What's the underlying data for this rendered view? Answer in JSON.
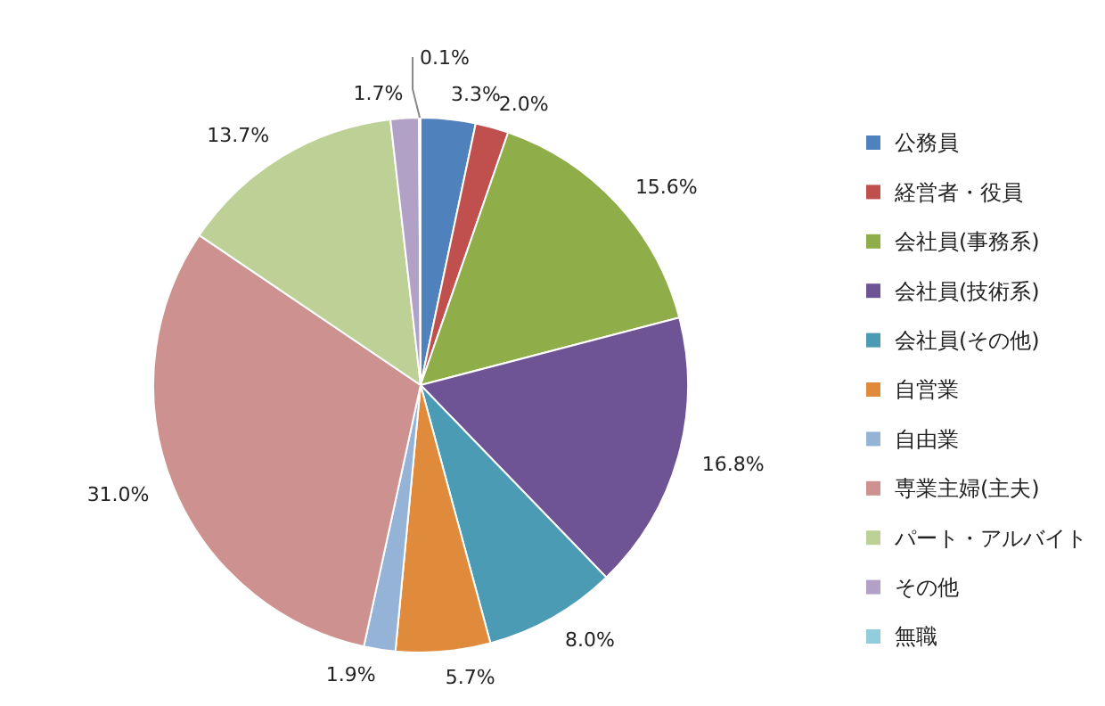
{
  "chart_data": {
    "type": "pie",
    "categories": [
      "公務員",
      "経営者・役員",
      "会社員(事務系)",
      "会社員(技術系)",
      "会社員(その他)",
      "自営業",
      "自由業",
      "専業主婦(主夫)",
      "パート・アルバイト",
      "その他",
      "無職"
    ],
    "values": [
      3.3,
      2.0,
      15.6,
      16.8,
      8.0,
      5.7,
      1.9,
      31.0,
      13.7,
      1.7,
      0.1
    ],
    "colors": [
      "#4f81bd",
      "#c0504d",
      "#8fad48",
      "#6f5495",
      "#4b9bb4",
      "#e08a3c",
      "#95b3d7",
      "#cd9290",
      "#bdd096",
      "#b2a1c7",
      "#92cddc"
    ],
    "value_labels": [
      "3.3%",
      "2.0%",
      "15.6%",
      "16.8%",
      "8.0%",
      "5.7%",
      "1.9%",
      "31.0%",
      "13.7%",
      "1.7%",
      "0.1%"
    ],
    "legend": "right"
  }
}
